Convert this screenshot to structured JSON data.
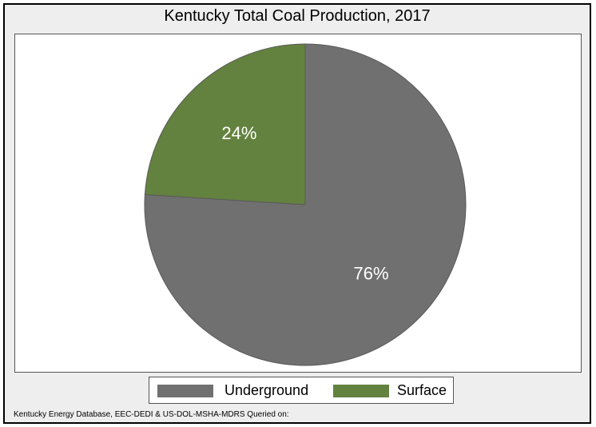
{
  "chart_data": {
    "type": "pie",
    "title": "Kentucky Total Coal Production, 2017",
    "slices": [
      {
        "label": "Underground",
        "value": 76,
        "display": "76%",
        "color": "#707070"
      },
      {
        "label": "Surface",
        "value": 24,
        "display": "24%",
        "color": "#63823f"
      }
    ],
    "start_angle": "12 o'clock",
    "direction": "clockwise",
    "legend_position": "bottom",
    "source": "Kentucky Energy Database, EEC-DEDI & US-DOL-MSHA-MDRS Queried on:"
  }
}
